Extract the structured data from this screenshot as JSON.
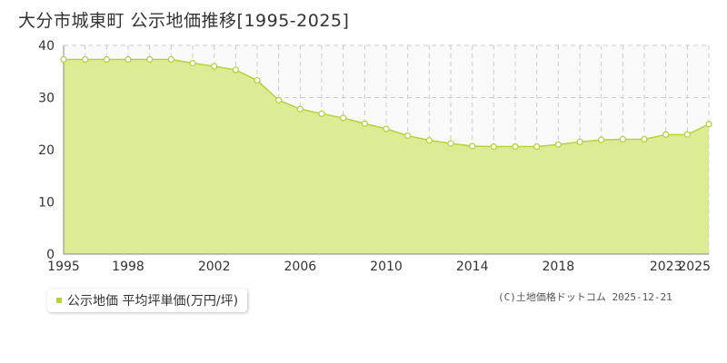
{
  "title": "大分市城東町 公示地価推移[1995-2025]",
  "legend": {
    "label": "公示地価 平均坪単価(万円/坪)"
  },
  "credit": "(C)土地価格ドットコム 2025-12-21",
  "colors": {
    "fill": "#dbec94",
    "line": "#b5d33c",
    "point_stroke": "#b5d33c",
    "point_fill": "#ffffff",
    "grid": "#cccccc",
    "axis": "#888888",
    "text": "#333333"
  },
  "chart_data": {
    "type": "area",
    "x": [
      1995,
      1996,
      1997,
      1998,
      1999,
      2000,
      2001,
      2002,
      2003,
      2004,
      2005,
      2006,
      2007,
      2008,
      2009,
      2010,
      2011,
      2012,
      2013,
      2014,
      2015,
      2016,
      2017,
      2018,
      2019,
      2020,
      2021,
      2022,
      2023,
      2024,
      2025
    ],
    "series": [
      {
        "values": [
          37.3,
          37.3,
          37.3,
          37.3,
          37.3,
          37.3,
          36.6,
          36.0,
          35.3,
          33.3,
          29.5,
          27.8,
          26.9,
          26.1,
          25.0,
          24.0,
          22.7,
          21.8,
          21.2,
          20.7,
          20.6,
          20.6,
          20.6,
          21.0,
          21.5,
          21.9,
          22.0,
          22.0,
          22.9,
          22.9,
          24.9
        ]
      }
    ],
    "xticks": [
      {
        "value": 1995,
        "label": "1995"
      },
      {
        "value": 1998,
        "label": "1998"
      },
      {
        "value": 2002,
        "label": "2002"
      },
      {
        "value": 2006,
        "label": "2006"
      },
      {
        "value": 2010,
        "label": "2010"
      },
      {
        "value": 2014,
        "label": "2014"
      },
      {
        "value": 2018,
        "label": "2018"
      },
      {
        "value": 2023,
        "label": "2023"
      },
      {
        "value": 2025,
        "label": "2025"
      }
    ],
    "yticks": [
      {
        "value": 0,
        "label": "0"
      },
      {
        "value": 10,
        "label": "10"
      },
      {
        "value": 20,
        "label": "20"
      },
      {
        "value": 30,
        "label": "30"
      },
      {
        "value": 40,
        "label": "40"
      }
    ],
    "xlim": [
      1995,
      2025
    ],
    "ylim": [
      0,
      40
    ],
    "grid": true,
    "legend_position": "bottom-left"
  }
}
